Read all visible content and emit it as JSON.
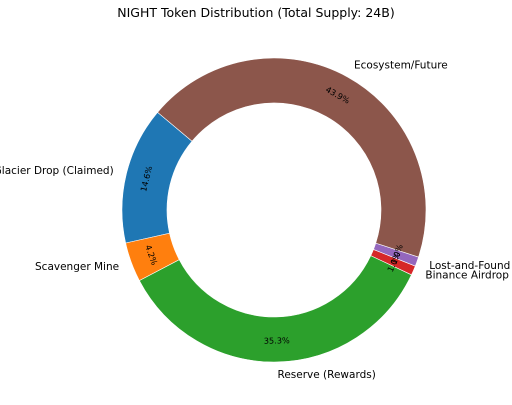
{
  "chart_data": {
    "type": "pie",
    "variant": "donut",
    "title": "NIGHT Token Distribution (Total Supply: 24B)",
    "slices": [
      {
        "label": "Glacier Drop (Claimed)",
        "value": 14.6,
        "value_label": "14.6%",
        "color": "#1f77b4"
      },
      {
        "label": "Scavenger Mine",
        "value": 4.2,
        "value_label": "4.2%",
        "color": "#ff7f0e"
      },
      {
        "label": "Reserve (Rewards)",
        "value": 35.3,
        "value_label": "35.3%",
        "color": "#2ca02c"
      },
      {
        "label": "Binance Airdrop",
        "value": 1.0,
        "value_label": "1.0%",
        "color": "#d62728"
      },
      {
        "label": "Lost-and-Found",
        "value": 1.0,
        "value_label": "1.0%",
        "color": "#9467bd"
      },
      {
        "label": "Ecosystem/Future",
        "value": 43.9,
        "value_label": "43.9%",
        "color": "#8c564b"
      }
    ],
    "start_angle_deg": 140,
    "direction": "counterclockwise",
    "legend": "none"
  }
}
